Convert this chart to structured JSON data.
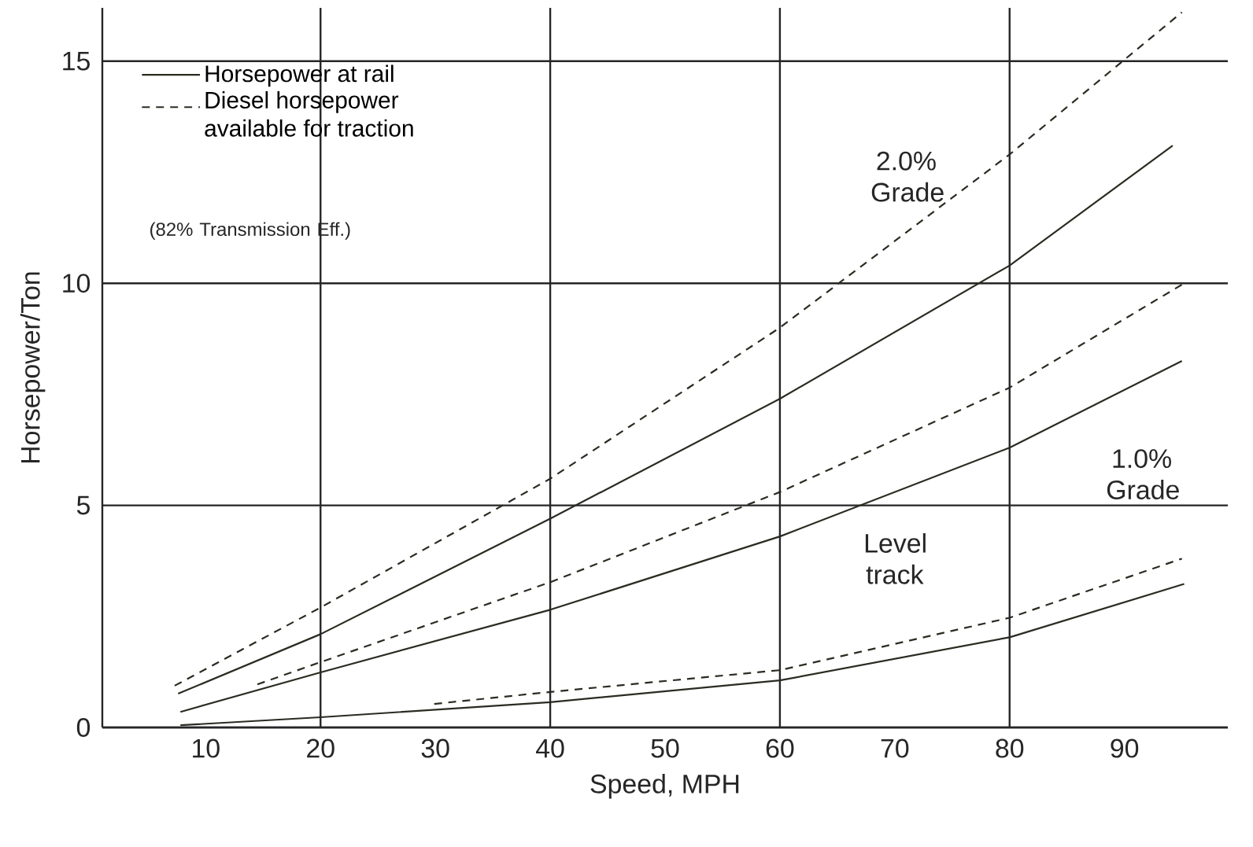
{
  "chart_data": {
    "type": "line",
    "xlabel": "Speed, MPH",
    "ylabel": "Horsepower/Ton",
    "xlim": [
      1,
      99
    ],
    "ylim": [
      0,
      16.2
    ],
    "xticks": [
      10,
      20,
      30,
      40,
      50,
      60,
      70,
      80,
      90
    ],
    "yticks": [
      0,
      5,
      10,
      15
    ],
    "grid": "y",
    "legend": "top left",
    "marker": "none",
    "ref_lines": [
      {
        "axis": "x",
        "value": 20
      },
      {
        "axis": "x",
        "value": 40
      },
      {
        "axis": "x",
        "value": 60
      },
      {
        "axis": "x",
        "value": 80
      }
    ],
    "annotations": [
      "(82% Transmission Eff.)",
      "2.0%\nGrade",
      "1.0%\nGrade",
      "Level\ntrack"
    ],
    "series": [
      {
        "name": "Horsepower at rail",
        "color": "#2b2b22",
        "line_style": "solid",
        "x": [
          7.6,
          20,
          40,
          60,
          80,
          94.2
        ],
        "values": [
          0.76,
          2.1,
          4.7,
          7.4,
          10.4,
          13.1
        ]
      },
      {
        "name": "Diesel horsepower available for traction",
        "color": "#2b2b22",
        "line_style": "dashed",
        "x": [
          7.3,
          20,
          40,
          60,
          80,
          95
        ],
        "values": [
          0.94,
          2.7,
          5.6,
          9.0,
          12.9,
          16.1
        ]
      },
      {
        "color": "#2b2b22",
        "line_style": "solid",
        "x": [
          7.8,
          20,
          40,
          60,
          80,
          95
        ],
        "values": [
          0.35,
          1.24,
          2.65,
          4.3,
          6.3,
          8.25
        ]
      },
      {
        "color": "#2b2b22",
        "line_style": "dashed",
        "x": [
          14.5,
          20,
          40,
          60,
          80,
          95.2
        ],
        "values": [
          0.97,
          1.47,
          3.27,
          5.3,
          7.65,
          10.0
        ]
      },
      {
        "color": "#2b2b22",
        "line_style": "solid",
        "x": [
          7.8,
          20,
          40,
          60,
          80,
          95.2
        ],
        "values": [
          0.05,
          0.23,
          0.57,
          1.06,
          2.03,
          3.23
        ]
      },
      {
        "color": "#2b2b22",
        "line_style": "dashed",
        "x": [
          29.9,
          40,
          60,
          80,
          95
        ],
        "values": [
          0.53,
          0.8,
          1.29,
          2.47,
          3.8
        ]
      }
    ]
  }
}
